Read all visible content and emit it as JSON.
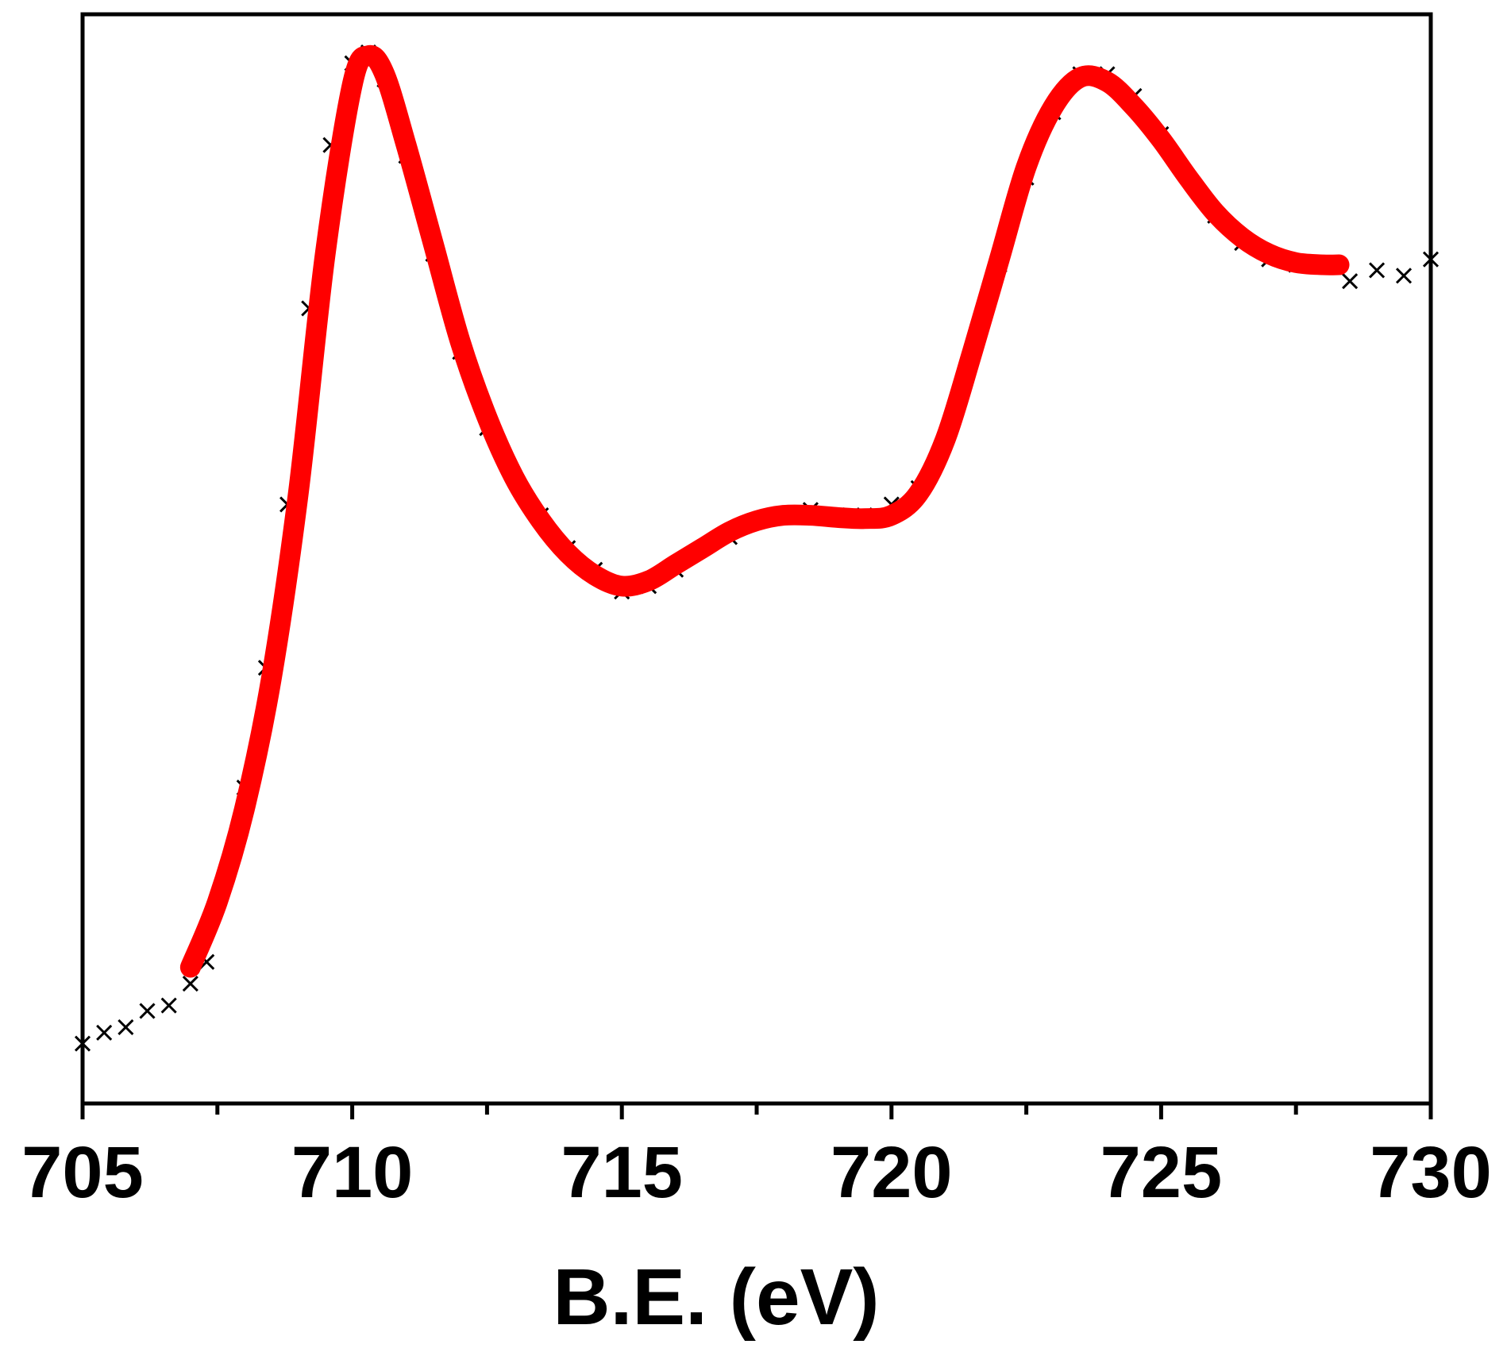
{
  "chart_data": {
    "type": "line",
    "title": "",
    "xlabel": "B.E. (eV)",
    "ylabel": "",
    "xlim": [
      705,
      730
    ],
    "ylim": [
      0,
      1
    ],
    "x_ticks": [
      "705",
      "710",
      "715",
      "720",
      "725",
      "730"
    ],
    "grid": false,
    "legend": "none",
    "series": [
      {
        "kind": "scatter",
        "marker": "x",
        "color": "#000000",
        "points": [
          [
            705.0,
            0.055
          ],
          [
            705.4,
            0.065
          ],
          [
            705.8,
            0.07
          ],
          [
            706.2,
            0.085
          ],
          [
            706.6,
            0.09
          ],
          [
            707.0,
            0.11
          ],
          [
            707.3,
            0.13
          ],
          [
            707.6,
            0.2
          ],
          [
            708.0,
            0.29
          ],
          [
            708.4,
            0.4
          ],
          [
            708.8,
            0.55
          ],
          [
            709.2,
            0.73
          ],
          [
            709.6,
            0.88
          ],
          [
            710.0,
            0.955
          ],
          [
            710.3,
            0.965
          ],
          [
            710.6,
            0.94
          ],
          [
            711.0,
            0.87
          ],
          [
            711.5,
            0.78
          ],
          [
            712.0,
            0.69
          ],
          [
            712.5,
            0.62
          ],
          [
            713.0,
            0.575
          ],
          [
            713.5,
            0.54
          ],
          [
            714.0,
            0.51
          ],
          [
            714.5,
            0.49
          ],
          [
            715.0,
            0.47
          ],
          [
            715.5,
            0.475
          ],
          [
            716.0,
            0.49
          ],
          [
            716.5,
            0.51
          ],
          [
            717.0,
            0.52
          ],
          [
            717.5,
            0.535
          ],
          [
            718.0,
            0.54
          ],
          [
            718.5,
            0.545
          ],
          [
            719.0,
            0.54
          ],
          [
            719.5,
            0.54
          ],
          [
            720.0,
            0.55
          ],
          [
            720.5,
            0.565
          ],
          [
            721.0,
            0.61
          ],
          [
            721.5,
            0.69
          ],
          [
            722.0,
            0.77
          ],
          [
            722.5,
            0.85
          ],
          [
            723.0,
            0.91
          ],
          [
            723.5,
            0.945
          ],
          [
            724.0,
            0.945
          ],
          [
            724.5,
            0.925
          ],
          [
            725.0,
            0.89
          ],
          [
            725.5,
            0.85
          ],
          [
            726.0,
            0.815
          ],
          [
            726.5,
            0.79
          ],
          [
            727.0,
            0.775
          ],
          [
            727.5,
            0.77
          ],
          [
            728.0,
            0.77
          ],
          [
            728.5,
            0.755
          ],
          [
            729.0,
            0.765
          ],
          [
            729.5,
            0.76
          ],
          [
            730.0,
            0.775
          ]
        ]
      },
      {
        "kind": "line",
        "color": "#ff0000",
        "points": [
          [
            707.0,
            0.125
          ],
          [
            707.5,
            0.185
          ],
          [
            708.0,
            0.27
          ],
          [
            708.5,
            0.39
          ],
          [
            709.0,
            0.56
          ],
          [
            709.5,
            0.78
          ],
          [
            710.0,
            0.935
          ],
          [
            710.3,
            0.962
          ],
          [
            710.6,
            0.945
          ],
          [
            711.0,
            0.88
          ],
          [
            711.5,
            0.79
          ],
          [
            712.0,
            0.7
          ],
          [
            712.5,
            0.63
          ],
          [
            713.0,
            0.575
          ],
          [
            713.5,
            0.535
          ],
          [
            714.0,
            0.505
          ],
          [
            714.5,
            0.485
          ],
          [
            715.0,
            0.475
          ],
          [
            715.5,
            0.48
          ],
          [
            716.0,
            0.495
          ],
          [
            716.5,
            0.51
          ],
          [
            717.0,
            0.525
          ],
          [
            717.5,
            0.535
          ],
          [
            718.0,
            0.54
          ],
          [
            718.5,
            0.54
          ],
          [
            719.0,
            0.538
          ],
          [
            719.5,
            0.537
          ],
          [
            720.0,
            0.54
          ],
          [
            720.5,
            0.56
          ],
          [
            721.0,
            0.61
          ],
          [
            721.5,
            0.69
          ],
          [
            722.0,
            0.775
          ],
          [
            722.5,
            0.86
          ],
          [
            723.0,
            0.915
          ],
          [
            723.5,
            0.942
          ],
          [
            724.0,
            0.938
          ],
          [
            724.5,
            0.915
          ],
          [
            725.0,
            0.885
          ],
          [
            725.5,
            0.85
          ],
          [
            726.0,
            0.818
          ],
          [
            726.5,
            0.795
          ],
          [
            727.0,
            0.78
          ],
          [
            727.5,
            0.772
          ],
          [
            728.0,
            0.77
          ],
          [
            728.3,
            0.77
          ]
        ]
      }
    ]
  }
}
